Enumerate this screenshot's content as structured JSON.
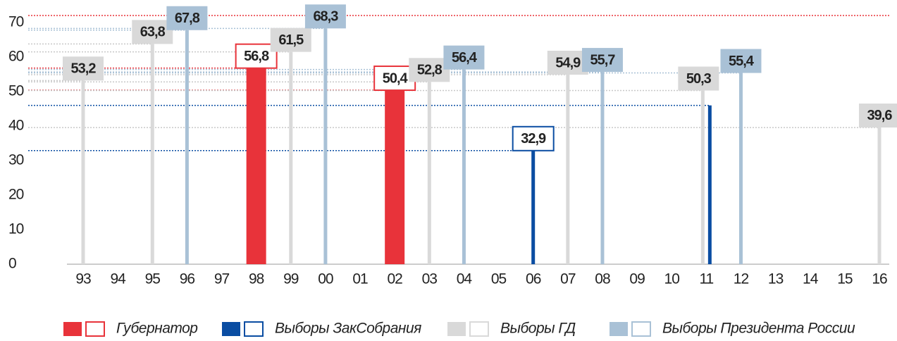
{
  "chart_data": {
    "type": "bar",
    "categories": [
      "93",
      "94",
      "95",
      "96",
      "97",
      "98",
      "99",
      "00",
      "01",
      "02",
      "03",
      "04",
      "05",
      "06",
      "07",
      "08",
      "09",
      "10",
      "11",
      "12",
      "13",
      "14",
      "15",
      "16"
    ],
    "ylim": [
      0,
      70
    ],
    "yticks": [
      0,
      10,
      20,
      30,
      40,
      50,
      60,
      70
    ],
    "series": [
      {
        "name": "Губернатор",
        "color": "#e8333a",
        "style": "wide",
        "values": [
          null,
          null,
          null,
          null,
          null,
          56.8,
          null,
          null,
          null,
          50.4,
          null,
          null,
          null,
          null,
          null,
          null,
          null,
          null,
          null,
          null,
          null,
          null,
          null,
          null
        ],
        "value_labels": [
          null,
          null,
          null,
          null,
          null,
          "56,8",
          null,
          null,
          null,
          "50,4",
          null,
          null,
          null,
          null,
          null,
          null,
          null,
          null,
          null,
          null,
          null,
          null,
          null,
          null
        ]
      },
      {
        "name": "Выборы ЗакСобрания",
        "color": "#0a4da2",
        "style": "thin",
        "values": [
          null,
          null,
          null,
          null,
          null,
          null,
          null,
          null,
          null,
          null,
          null,
          null,
          null,
          32.9,
          null,
          null,
          null,
          null,
          46,
          null,
          null,
          null,
          null,
          null
        ],
        "value_labels": [
          null,
          null,
          null,
          null,
          null,
          null,
          null,
          null,
          null,
          null,
          null,
          null,
          null,
          "32,9",
          null,
          null,
          null,
          null,
          null,
          null,
          null,
          null,
          null,
          null
        ]
      },
      {
        "name": "Выборы  ГД",
        "color": "#d9d9d9",
        "style": "thin",
        "values": [
          53.2,
          null,
          63.8,
          null,
          null,
          null,
          61.5,
          null,
          null,
          null,
          52.8,
          null,
          null,
          null,
          54.9,
          null,
          null,
          null,
          50.3,
          null,
          null,
          null,
          null,
          39.6
        ],
        "value_labels": [
          "53,2",
          null,
          "63,8",
          null,
          null,
          null,
          "61,5",
          null,
          null,
          null,
          "52,8",
          null,
          null,
          null,
          "54,9",
          null,
          null,
          null,
          "50,3",
          null,
          null,
          null,
          null,
          "39,6"
        ]
      },
      {
        "name": "Выборы Президента России",
        "color": "#a9c1d6",
        "style": "thin",
        "values": [
          null,
          null,
          null,
          67.8,
          null,
          null,
          null,
          68.3,
          null,
          null,
          null,
          56.4,
          null,
          null,
          null,
          55.7,
          null,
          null,
          null,
          55.4,
          null,
          null,
          null,
          null
        ],
        "value_labels": [
          null,
          null,
          null,
          "67,8",
          null,
          null,
          null,
          "68,3",
          null,
          null,
          null,
          "56,4",
          null,
          null,
          null,
          "55,7",
          null,
          null,
          null,
          "55,4",
          null,
          null,
          null,
          null
        ]
      }
    ]
  }
}
